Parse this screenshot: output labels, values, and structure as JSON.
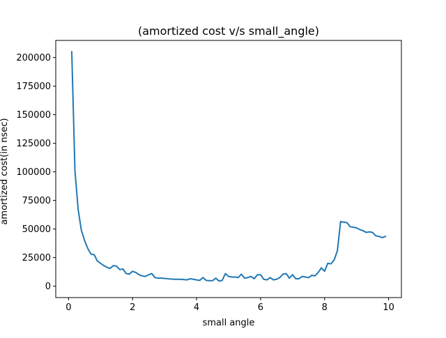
{
  "chart_data": {
    "type": "line",
    "title": "(amortized cost v/s small_angle)",
    "xlabel": "small angle",
    "ylabel": "amortized cost(in nsec)",
    "xlim": [
      -0.4,
      10.4
    ],
    "ylim": [
      -10000,
      215000
    ],
    "xticks": [
      0,
      2,
      4,
      6,
      8,
      10
    ],
    "yticks": [
      0,
      25000,
      50000,
      75000,
      100000,
      125000,
      150000,
      175000,
      200000
    ],
    "grid": false,
    "line_color": "#1f77b4",
    "series": [
      {
        "x": [
          0.1,
          0.2,
          0.3,
          0.4,
          0.5,
          0.6,
          0.7,
          0.8,
          0.9,
          1.0,
          1.1,
          1.2,
          1.3,
          1.4,
          1.5,
          1.6,
          1.7,
          1.8,
          1.9,
          2.0,
          2.1,
          2.2,
          2.3,
          2.4,
          2.5,
          2.6,
          2.7,
          2.8,
          2.9,
          3.0,
          3.1,
          3.2,
          3.3,
          3.4,
          3.5,
          3.6,
          3.7,
          3.8,
          3.9,
          4.0,
          4.1,
          4.2,
          4.3,
          4.4,
          4.5,
          4.6,
          4.7,
          4.8,
          4.9,
          5.0,
          5.1,
          5.2,
          5.3,
          5.4,
          5.5,
          5.6,
          5.7,
          5.8,
          5.9,
          6.0,
          6.1,
          6.2,
          6.3,
          6.4,
          6.5,
          6.6,
          6.7,
          6.8,
          6.9,
          7.0,
          7.1,
          7.2,
          7.3,
          7.4,
          7.5,
          7.6,
          7.7,
          7.8,
          7.9,
          8.0,
          8.1,
          8.2,
          8.3,
          8.4,
          8.5,
          8.6,
          8.7,
          8.8,
          8.9,
          9.0,
          9.1,
          9.2,
          9.3,
          9.4,
          9.5,
          9.6,
          9.7,
          9.8,
          9.9
        ],
        "values": [
          205000,
          101000,
          67000,
          49000,
          40000,
          33000,
          28000,
          27500,
          22000,
          20000,
          18000,
          16500,
          15500,
          18000,
          17500,
          14500,
          15000,
          11000,
          10500,
          13000,
          12000,
          10000,
          9000,
          8500,
          10000,
          11000,
          7500,
          7000,
          7000,
          6800,
          6500,
          6200,
          6000,
          6000,
          6000,
          5800,
          5500,
          6500,
          6000,
          5500,
          5000,
          7500,
          5000,
          4800,
          4800,
          7000,
          4500,
          5000,
          11000,
          8500,
          8000,
          8000,
          7500,
          10500,
          7000,
          7500,
          8500,
          6500,
          10000,
          10000,
          6000,
          5500,
          7500,
          5500,
          6000,
          7500,
          10500,
          11000,
          7000,
          10000,
          6500,
          6500,
          8500,
          8000,
          7500,
          9500,
          9000,
          12000,
          16000,
          13000,
          20000,
          19500,
          23000,
          31000,
          56500,
          56000,
          55500,
          52000,
          51500,
          51000,
          49500,
          48500,
          47000,
          47500,
          47000,
          44000,
          43500,
          42500,
          43500
        ]
      }
    ]
  }
}
